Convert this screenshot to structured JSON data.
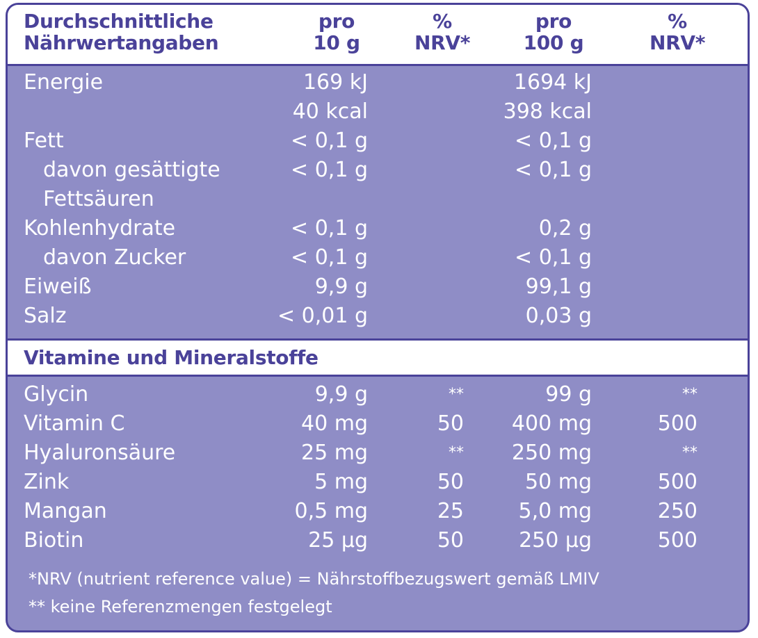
{
  "header": {
    "title_line1": "Durchschnittliche",
    "title_line2": "Nährwertangaben",
    "col1_line1": "pro",
    "col1_line2": "10 g",
    "col2_line1": "%",
    "col2_line2": "NRV*",
    "col3_line1": "pro",
    "col3_line2": "100 g",
    "col4_line1": "%",
    "col4_line2": "NRV*"
  },
  "nutrition_rows": [
    {
      "label": "Energie",
      "per10": "169 kJ",
      "per100": "1694 kJ"
    },
    {
      "label": "",
      "per10": "40 kcal",
      "per100": "398 kcal"
    },
    {
      "label": "Fett",
      "per10": "< 0,1 g",
      "per100": "< 0,1 g"
    },
    {
      "label": "davon gesättigte",
      "per10": "< 0,1 g",
      "per100": "< 0,1 g"
    },
    {
      "label": "Fettsäuren",
      "per10": "",
      "per100": ""
    },
    {
      "label": "Kohlenhydrate",
      "per10": "< 0,1 g",
      "per100": "0,2 g"
    },
    {
      "label": "davon Zucker",
      "per10": "< 0,1 g",
      "per100": "< 0,1 g"
    },
    {
      "label": "Eiweiß",
      "per10": "9,9 g",
      "per100": "99,1 g"
    },
    {
      "label": "Salz",
      "per10": "< 0,01 g",
      "per100": "0,03 g"
    }
  ],
  "section_title": "Vitamine und Mineralstoffe",
  "vitamin_rows": [
    {
      "label": "Glycin",
      "per10": "9,9 g",
      "nrv10": "**",
      "per100": "99 g",
      "nrv100": "**"
    },
    {
      "label": "Vitamin C",
      "per10": "40 mg",
      "nrv10": "50",
      "per100": "400 mg",
      "nrv100": "500"
    },
    {
      "label": "Hyaluronsäure",
      "per10": "25 mg",
      "nrv10": "**",
      "per100": "250 mg",
      "nrv100": "**"
    },
    {
      "label": "Zink",
      "per10": "5 mg",
      "nrv10": "50",
      "per100": "50 mg",
      "nrv100": "500"
    },
    {
      "label": "Mangan",
      "per10": "0,5 mg",
      "nrv10": "25",
      "per100": "5,0 mg",
      "nrv100": "250"
    },
    {
      "label": "Biotin",
      "per10": "25 µg",
      "nrv10": "50",
      "per100": "250 µg",
      "nrv100": "500"
    }
  ],
  "footnotes": {
    "nrv": "*NRV (nutrient reference value) = Nährstoffbezugswert gemäß LMIV",
    "stars": "** keine Referenzmengen festgelegt"
  },
  "colors": {
    "panel": "#8f8dc6",
    "accent": "#4a4299",
    "header_bg": "#ffffff",
    "text": "#ffffff"
  }
}
